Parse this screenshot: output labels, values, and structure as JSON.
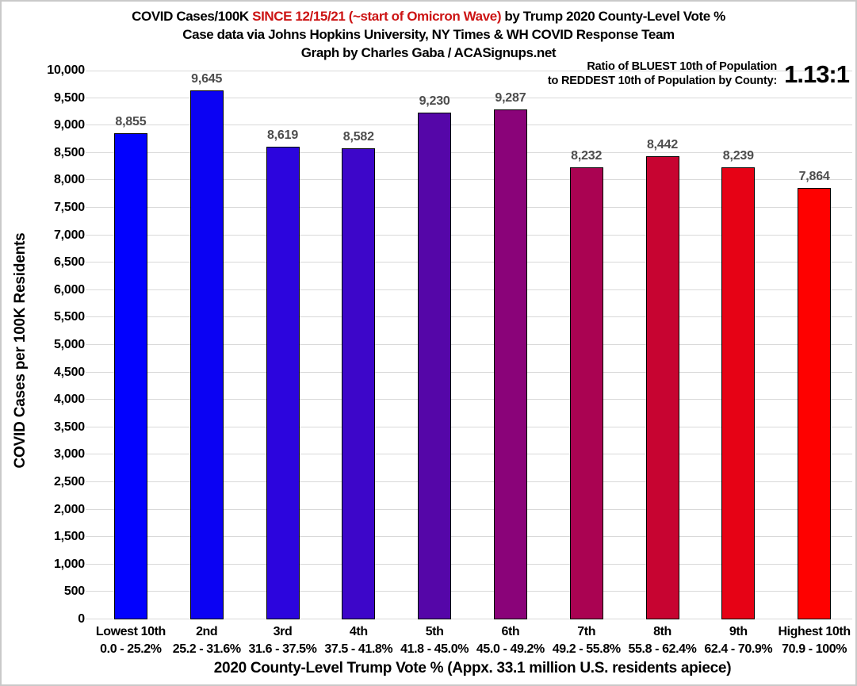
{
  "title": {
    "line1_part1": "COVID Cases/100K ",
    "line1_part2": "SINCE 12/15/21 (~start of Omicron Wave)",
    "line1_part3": " by Trump 2020 County-Level Vote %",
    "line2": "Case data via Johns Hopkins University, NY Times & WH COVID Response Team",
    "line3": "Graph by Charles Gaba / ACASignups.net",
    "highlight_color": "#cc1414"
  },
  "annotation": {
    "line1": "Ratio of BLUEST 10th of Population",
    "line2": "to REDDEST 10th of Population by County:",
    "value": "1.13:1"
  },
  "chart_data": {
    "type": "bar",
    "title": "COVID Cases/100K SINCE 12/15/21 (~start of Omicron Wave) by Trump 2020 County-Level Vote %",
    "subtitle1": "Case data via Johns Hopkins University, NY Times & WH COVID Response Team",
    "subtitle2": "Graph by Charles Gaba / ACASignups.net",
    "xlabel": "2020 County-Level Trump Vote % (Appx. 33.1 million U.S. residents apiece)",
    "ylabel": "COVID Cases per 100K Residents",
    "ylim": [
      0,
      10000
    ],
    "ytick_step": 500,
    "grid": "horizontal",
    "legend": "none",
    "categories": [
      "Lowest 10th",
      "2nd",
      "3rd",
      "4th",
      "5th",
      "6th",
      "7th",
      "8th",
      "9th",
      "Highest 10th"
    ],
    "ranges": [
      "0.0 - 25.2%",
      "25.2 - 31.6%",
      "31.6 - 37.5%",
      "37.5 - 41.8%",
      "41.8 - 45.0%",
      "45.0 - 49.2%",
      "49.2 - 55.8%",
      "55.8 - 62.4%",
      "62.4 - 70.9%",
      "70.9 - 100%"
    ],
    "values": [
      8855,
      9645,
      8619,
      8582,
      9230,
      9287,
      8232,
      8442,
      8239,
      7864
    ],
    "value_labels": [
      "8,855",
      "9,645",
      "8,619",
      "8,582",
      "9,230",
      "9,287",
      "8,232",
      "8,442",
      "8,239",
      "7,864"
    ],
    "bar_colors": [
      "#0201fe",
      "#0b02f3",
      "#2c05dd",
      "#3d06c9",
      "#5506a8",
      "#8a0379",
      "#aa0352",
      "#c70431",
      "#e60215",
      "#fe0100"
    ],
    "bar_border_color": "#000000",
    "value_label_color": "#4d4d4d",
    "grid_color": "#d9d9d9"
  }
}
